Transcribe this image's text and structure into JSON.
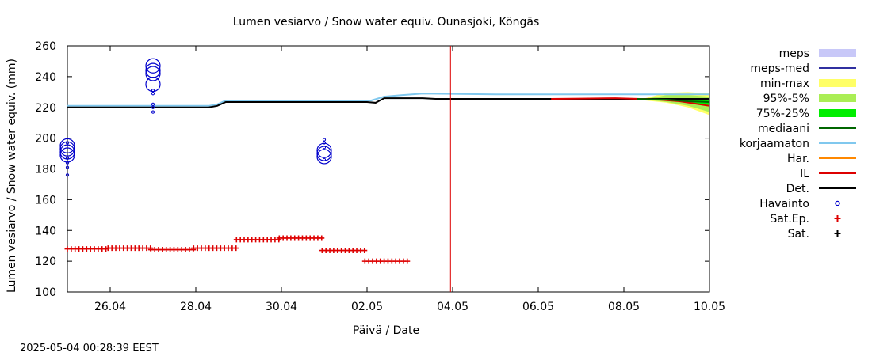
{
  "chart_data": {
    "type": "line",
    "title": "Lumen vesiarvo / Snow water equiv.  Ounasjoki, Köngäs",
    "xlabel": "Päivä / Date",
    "ylabel": "Lumen vesiarvo / Snow water equiv. (mm)",
    "timestamp": "2025-05-04 00:28:39 EEST",
    "xlim": [
      25.0,
      40.0
    ],
    "ylim": [
      100,
      260
    ],
    "x_unit": "days (x=25.0 is 25.04.2025 00:00; 31.0 = 01.05)",
    "yticks": [
      100,
      120,
      140,
      160,
      180,
      200,
      220,
      240,
      260
    ],
    "xticks": [
      {
        "x": 26,
        "label": "26.04"
      },
      {
        "x": 28,
        "label": "28.04"
      },
      {
        "x": 30,
        "label": "30.04"
      },
      {
        "x": 32,
        "label": "02.05"
      },
      {
        "x": 34,
        "label": "04.05"
      },
      {
        "x": 36,
        "label": "06.05"
      },
      {
        "x": 38,
        "label": "08.05"
      },
      {
        "x": 40,
        "label": "10.05"
      }
    ],
    "now_marker_x": 33.95,
    "legend_position": "right",
    "legend": [
      {
        "label": "meps",
        "kind": "band",
        "color": "#c8c8f8"
      },
      {
        "label": "meps-med",
        "kind": "line",
        "color": "#3030a0"
      },
      {
        "label": "min-max",
        "kind": "band",
        "color": "#ffff66"
      },
      {
        "label": "95%-5%",
        "kind": "band",
        "color": "#aaee55"
      },
      {
        "label": "75%-25%",
        "kind": "band",
        "color": "#00ee00"
      },
      {
        "label": "mediaani",
        "kind": "line",
        "color": "#006600"
      },
      {
        "label": "korjaamaton",
        "kind": "line",
        "color": "#80c8ee"
      },
      {
        "label": "Har.",
        "kind": "line",
        "color": "#ff8800"
      },
      {
        "label": "IL",
        "kind": "line",
        "color": "#dd0000"
      },
      {
        "label": "Det.",
        "kind": "line",
        "color": "#000000"
      },
      {
        "label": "Havainto",
        "kind": "circle",
        "color": "#0000cc"
      },
      {
        "label": "Sat.Ep.",
        "kind": "plus",
        "color": "#dd0000"
      },
      {
        "label": "Sat.",
        "kind": "plus",
        "color": "#000000"
      }
    ],
    "series": [
      {
        "name": "korjaamaton",
        "color": "#80c8ee",
        "points": [
          [
            25.0,
            221
          ],
          [
            28.3,
            221
          ],
          [
            28.5,
            222
          ],
          [
            28.7,
            224.5
          ],
          [
            32.1,
            224.5
          ],
          [
            32.4,
            227
          ],
          [
            32.8,
            228
          ],
          [
            33.3,
            229
          ],
          [
            35.0,
            228.5
          ],
          [
            37.0,
            228.5
          ],
          [
            40.0,
            228.5
          ]
        ]
      },
      {
        "name": "Det.",
        "color": "#000000",
        "points": [
          [
            25.0,
            220
          ],
          [
            28.3,
            220
          ],
          [
            28.5,
            221
          ],
          [
            28.7,
            223.5
          ],
          [
            32.0,
            223.5
          ],
          [
            32.2,
            223
          ],
          [
            32.4,
            226
          ],
          [
            33.3,
            226
          ],
          [
            33.6,
            225.5
          ],
          [
            40.0,
            225.5
          ]
        ]
      },
      {
        "name": "IL",
        "color": "#dd0000",
        "points": [
          [
            36.3,
            225.5
          ],
          [
            37.0,
            225.7
          ],
          [
            37.8,
            226
          ],
          [
            38.7,
            225.3
          ],
          [
            39.3,
            224
          ],
          [
            40.0,
            221
          ]
        ]
      },
      {
        "name": "mediaani",
        "color": "#006600",
        "points": [
          [
            38.3,
            225.5
          ],
          [
            39.0,
            225
          ],
          [
            39.5,
            224
          ],
          [
            40.0,
            223.5
          ]
        ]
      }
    ],
    "bands": [
      {
        "name": "min-max",
        "color": "#ffff66",
        "upper": [
          [
            38.5,
            226
          ],
          [
            39.0,
            229.5
          ],
          [
            39.5,
            230
          ],
          [
            40.0,
            229
          ]
        ],
        "lower": [
          [
            38.5,
            224.5
          ],
          [
            39.0,
            223
          ],
          [
            39.5,
            220
          ],
          [
            40.0,
            215
          ]
        ]
      },
      {
        "name": "95%-5%",
        "color": "#aaee55",
        "upper": [
          [
            38.5,
            225.5
          ],
          [
            39.0,
            228
          ],
          [
            39.5,
            228
          ],
          [
            40.0,
            227
          ]
        ],
        "lower": [
          [
            38.5,
            225
          ],
          [
            39.0,
            223.5
          ],
          [
            39.5,
            221
          ],
          [
            40.0,
            217
          ]
        ]
      },
      {
        "name": "75%-25%",
        "color": "#00ee00",
        "upper": [
          [
            38.8,
            225.5
          ],
          [
            39.3,
            226
          ],
          [
            40.0,
            225
          ]
        ],
        "lower": [
          [
            38.8,
            225
          ],
          [
            39.3,
            224
          ],
          [
            40.0,
            221.5
          ]
        ]
      }
    ],
    "havainto": [
      {
        "x": 25.0,
        "values": [
          189,
          191,
          193,
          195
        ]
      },
      {
        "x": 27.0,
        "values": [
          235,
          242,
          244,
          247
        ]
      },
      {
        "x": 31.0,
        "values": [
          188,
          190,
          192
        ]
      }
    ],
    "havainto_small": [
      {
        "x": 25.0,
        "values": [
          176,
          181,
          184,
          187,
          197
        ]
      },
      {
        "x": 27.0,
        "values": [
          217,
          220,
          222,
          229,
          231
        ]
      },
      {
        "x": 31.0,
        "values": [
          186,
          194,
          197,
          199
        ]
      }
    ],
    "sat_ep": [
      {
        "x0": 25.0,
        "x1": 25.95,
        "y": 128
      },
      {
        "x0": 25.95,
        "x1": 26.95,
        "y": 128.5
      },
      {
        "x0": 26.95,
        "x1": 27.95,
        "y": 127.5
      },
      {
        "x0": 27.95,
        "x1": 28.95,
        "y": 128.5
      },
      {
        "x0": 28.95,
        "x1": 29.95,
        "y": 134
      },
      {
        "x0": 29.95,
        "x1": 30.95,
        "y": 135
      },
      {
        "x0": 30.95,
        "x1": 31.95,
        "y": 127
      },
      {
        "x0": 31.95,
        "x1": 32.95,
        "y": 120
      }
    ]
  }
}
